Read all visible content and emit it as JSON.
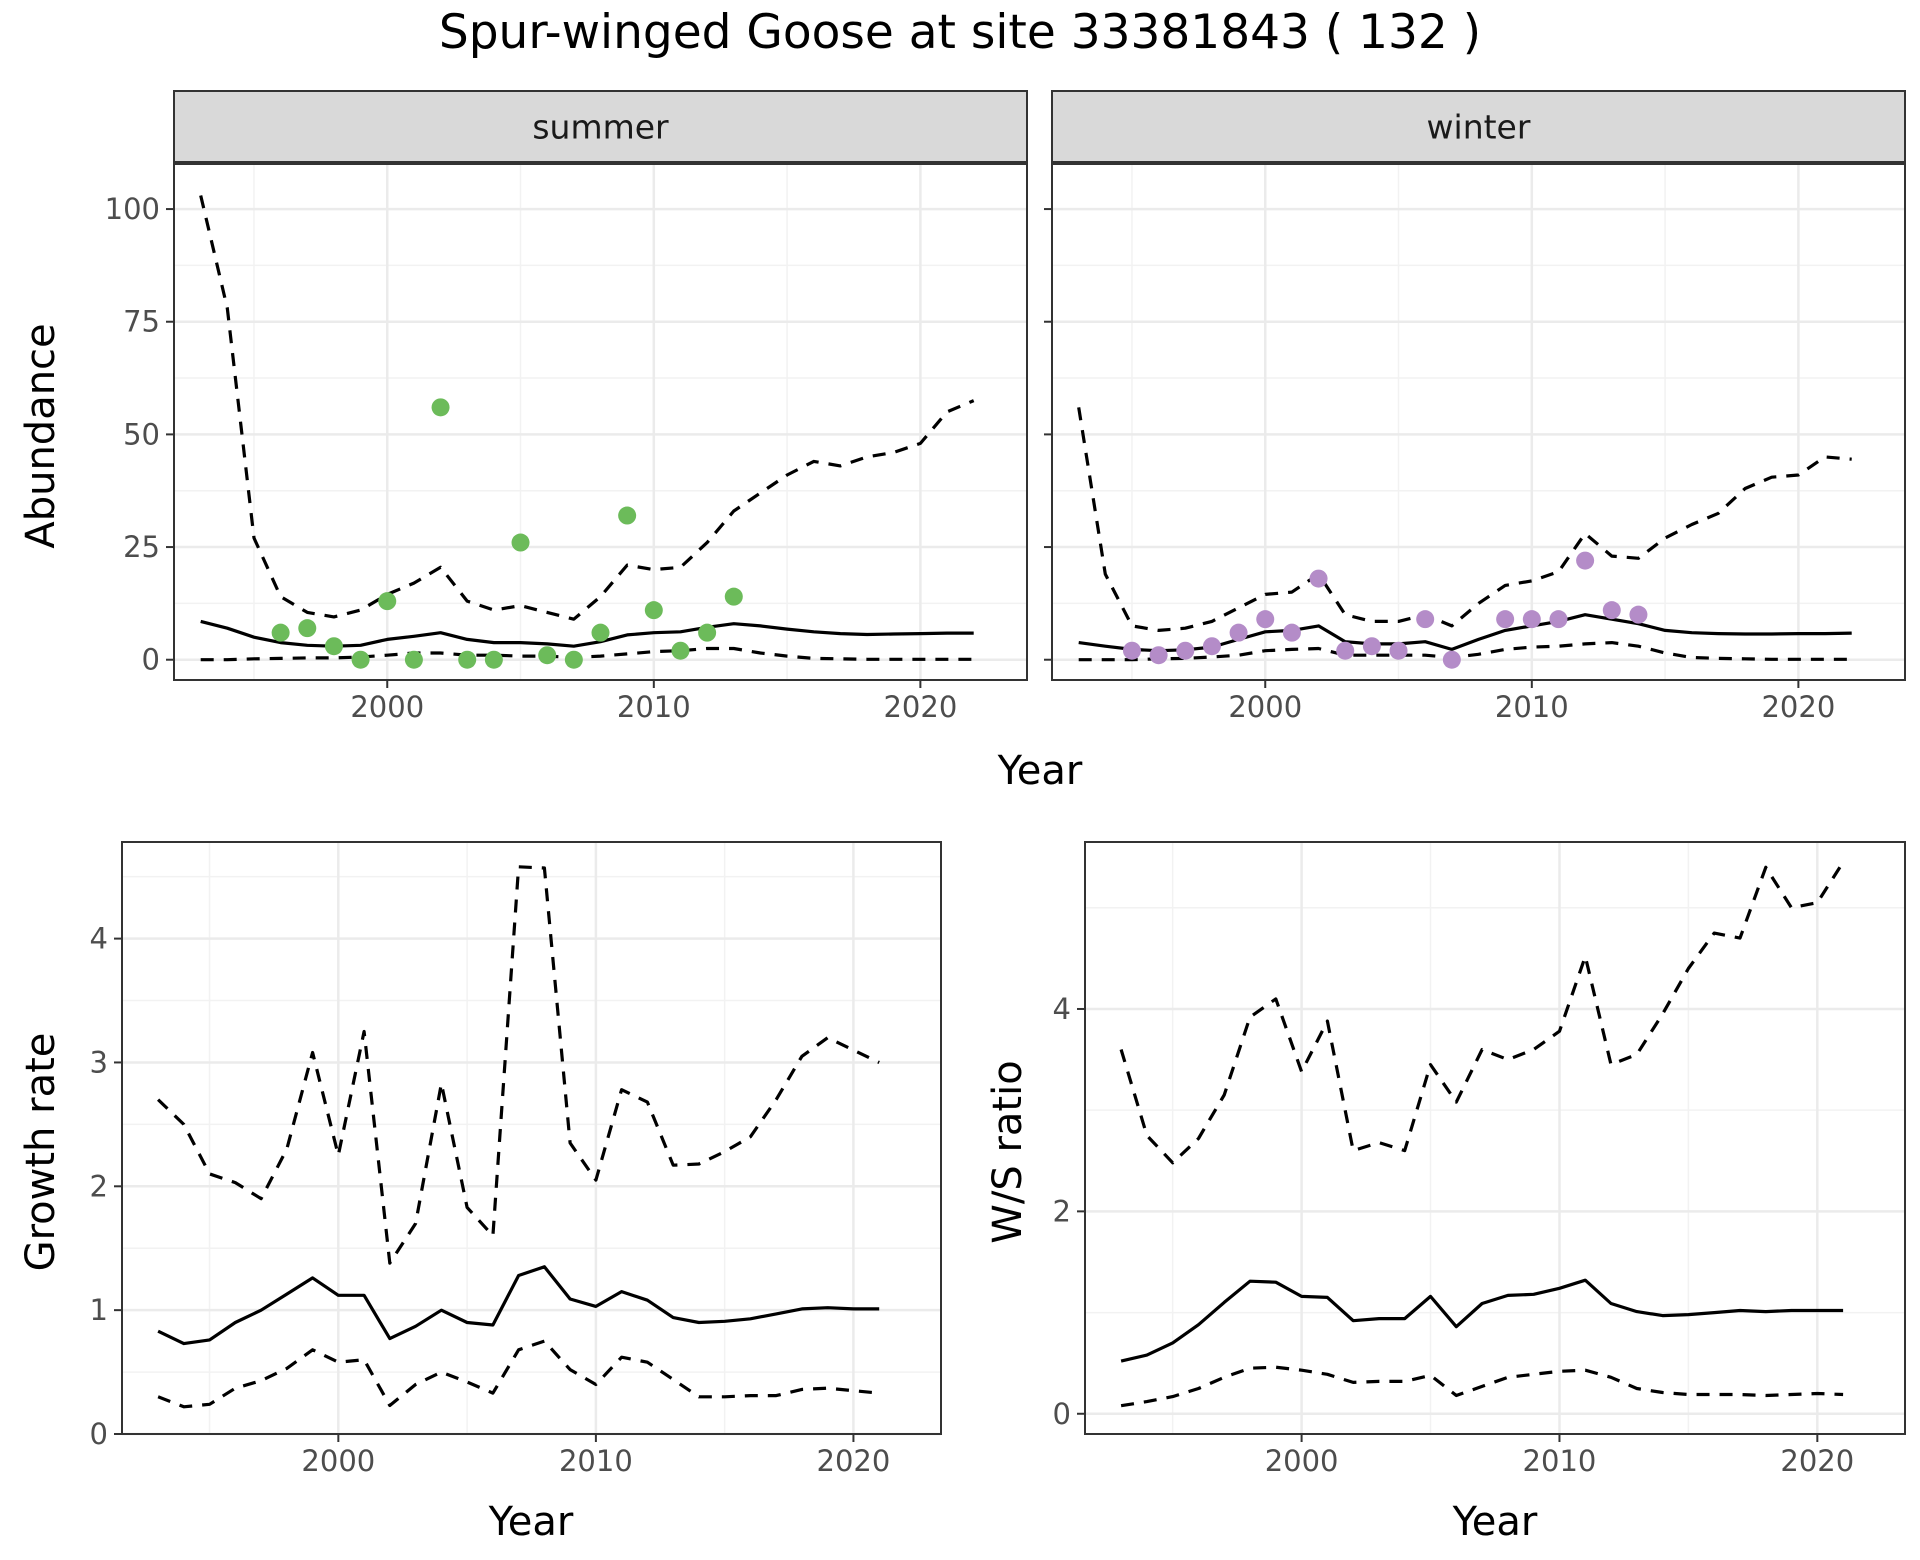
{
  "chart_data": [
    {
      "type": "line",
      "title": "Spur-winged Goose at site 33381843 ( 132 )",
      "facet": "summer",
      "xlabel": "Year",
      "ylabel": "Abundance",
      "xlim": [
        1992,
        2024
      ],
      "ylim": [
        -4.5,
        110
      ],
      "xticks": [
        "2000",
        "2010",
        "2020"
      ],
      "yticks": [
        "0",
        "25",
        "50",
        "75",
        "100"
      ],
      "grid": true,
      "series": [
        {
          "role": "estimate",
          "style": "solid",
          "x": [
            1993,
            1994,
            1995,
            1996,
            1997,
            1998,
            1999,
            2000,
            2001,
            2002,
            2003,
            2004,
            2005,
            2006,
            2007,
            2008,
            2009,
            2010,
            2011,
            2012,
            2013,
            2014,
            2015,
            2016,
            2017,
            2018,
            2019,
            2020,
            2021,
            2022
          ],
          "y": [
            8.5,
            7,
            5,
            3.8,
            3.2,
            3,
            3.2,
            4.5,
            5.2,
            6,
            4.5,
            3.8,
            3.8,
            3.5,
            3,
            4,
            5.5,
            6,
            6.2,
            7.2,
            8,
            7.5,
            6.8,
            6.2,
            5.8,
            5.6,
            5.7,
            5.8,
            5.9,
            5.9
          ]
        },
        {
          "role": "upper",
          "style": "dashed",
          "x": [
            1993,
            1994,
            1995,
            1996,
            1997,
            1998,
            1999,
            2000,
            2001,
            2002,
            2003,
            2004,
            2005,
            2006,
            2007,
            2008,
            2009,
            2010,
            2011,
            2012,
            2013,
            2014,
            2015,
            2016,
            2017,
            2018,
            2019,
            2020,
            2021,
            2022
          ],
          "y": [
            103,
            78,
            27,
            14,
            10.5,
            9.5,
            11,
            14.5,
            17,
            20.5,
            13,
            11,
            12,
            10.5,
            9,
            14,
            21,
            20,
            20.5,
            26,
            33,
            37,
            41,
            44,
            43,
            45,
            46,
            48,
            55,
            57.5
          ]
        },
        {
          "role": "lower",
          "style": "dashed",
          "x": [
            1993,
            1994,
            1995,
            1996,
            1997,
            1998,
            1999,
            2000,
            2001,
            2002,
            2003,
            2004,
            2005,
            2006,
            2007,
            2008,
            2009,
            2010,
            2011,
            2012,
            2013,
            2014,
            2015,
            2016,
            2017,
            2018,
            2019,
            2020,
            2021,
            2022
          ],
          "y": [
            0,
            0,
            0.2,
            0.3,
            0.4,
            0.4,
            0.6,
            1,
            1.5,
            1.5,
            1,
            1,
            0.8,
            0.8,
            0.5,
            0.8,
            1.3,
            1.8,
            2,
            2.5,
            2.5,
            1.5,
            0.8,
            0.3,
            0.2,
            0.1,
            0.1,
            0.1,
            0.1,
            0.1
          ]
        }
      ],
      "points": {
        "color": "#6cbb5a",
        "x": [
          1996,
          1997,
          1998,
          1999,
          2000,
          2001,
          2002,
          2003,
          2004,
          2005,
          2006,
          2007,
          2008,
          2009,
          2010,
          2011,
          2012,
          2013
        ],
        "y": [
          6,
          7,
          3,
          0,
          13,
          0,
          56,
          0,
          0,
          26,
          1,
          0,
          6,
          32,
          11,
          2,
          6,
          14
        ]
      }
    },
    {
      "type": "line",
      "facet": "winter",
      "xlim": [
        1992,
        2024
      ],
      "ylim": [
        -4.5,
        110
      ],
      "xticks": [
        "2000",
        "2010",
        "2020"
      ],
      "grid": true,
      "series": [
        {
          "role": "estimate",
          "style": "solid",
          "x": [
            1993,
            1994,
            1995,
            1996,
            1997,
            1998,
            1999,
            2000,
            2001,
            2002,
            2003,
            2004,
            2005,
            2006,
            2007,
            2008,
            2009,
            2010,
            2011,
            2012,
            2013,
            2014,
            2015,
            2016,
            2017,
            2018,
            2019,
            2020,
            2021,
            2022
          ],
          "y": [
            3.8,
            3,
            2.3,
            2,
            2.2,
            2.8,
            4.5,
            6.2,
            6.5,
            7.5,
            4,
            3.5,
            3.5,
            4,
            2.3,
            4.5,
            6.5,
            7.5,
            8.5,
            10,
            9,
            8,
            6.5,
            6,
            5.8,
            5.7,
            5.7,
            5.8,
            5.8,
            5.9
          ]
        },
        {
          "role": "upper",
          "style": "dashed",
          "x": [
            1993,
            1994,
            1995,
            1996,
            1997,
            1998,
            1999,
            2000,
            2001,
            2002,
            2003,
            2004,
            2005,
            2006,
            2007,
            2008,
            2009,
            2010,
            2011,
            2012,
            2013,
            2014,
            2015,
            2016,
            2017,
            2018,
            2019,
            2020,
            2021,
            2022
          ],
          "y": [
            56,
            19,
            7.5,
            6.5,
            7,
            8.5,
            11.5,
            14.5,
            15,
            19,
            10,
            8.5,
            8.5,
            10,
            7.5,
            12.5,
            16.5,
            17.5,
            19.5,
            28,
            23,
            22.5,
            27,
            30,
            32.5,
            38,
            40.5,
            41,
            45,
            44.5
          ]
        },
        {
          "role": "lower",
          "style": "dashed",
          "x": [
            1993,
            1994,
            1995,
            1996,
            1997,
            1998,
            1999,
            2000,
            2001,
            2002,
            2003,
            2004,
            2005,
            2006,
            2007,
            2008,
            2009,
            2010,
            2011,
            2012,
            2013,
            2014,
            2015,
            2016,
            2017,
            2018,
            2019,
            2020,
            2021,
            2022
          ],
          "y": [
            0,
            0,
            0,
            0.2,
            0.3,
            0.6,
            1,
            2,
            2.3,
            2.5,
            1,
            1,
            1,
            1,
            0.5,
            1.2,
            2.3,
            2.8,
            3,
            3.5,
            3.8,
            3,
            1.5,
            0.5,
            0.3,
            0.2,
            0.1,
            0.1,
            0.1,
            0.1
          ]
        }
      ],
      "points": {
        "color": "#b48cc8",
        "x": [
          1995,
          1996,
          1997,
          1998,
          1999,
          2000,
          2001,
          2002,
          2003,
          2004,
          2005,
          2006,
          2007,
          2009,
          2010,
          2011,
          2012,
          2013,
          2014
        ],
        "y": [
          2,
          1,
          2,
          3,
          6,
          9,
          6,
          18,
          2,
          3,
          2,
          9,
          0,
          9,
          9,
          9,
          22,
          11,
          10
        ]
      }
    },
    {
      "type": "line",
      "xlabel": "Year",
      "ylabel": "Growth rate",
      "xlim": [
        1991.6,
        2023.4
      ],
      "ylim": [
        0,
        4.78
      ],
      "xticks": [
        "2000",
        "2010",
        "2020"
      ],
      "yticks": [
        "0",
        "1",
        "2",
        "3",
        "4"
      ],
      "grid": true,
      "series": [
        {
          "role": "estimate",
          "style": "solid",
          "x": [
            1993,
            1994,
            1995,
            1996,
            1997,
            1998,
            1999,
            2000,
            2001,
            2002,
            2003,
            2004,
            2005,
            2006,
            2007,
            2008,
            2009,
            2010,
            2011,
            2012,
            2013,
            2014,
            2015,
            2016,
            2017,
            2018,
            2019,
            2020,
            2021
          ],
          "y": [
            0.83,
            0.73,
            0.76,
            0.9,
            1,
            1.13,
            1.26,
            1.12,
            1.12,
            0.77,
            0.87,
            1,
            0.9,
            0.88,
            1.28,
            1.35,
            1.09,
            1.03,
            1.15,
            1.08,
            0.94,
            0.9,
            0.91,
            0.93,
            0.97,
            1.01,
            1.02,
            1.01,
            1.01
          ]
        },
        {
          "role": "upper",
          "style": "dashed",
          "x": [
            1993,
            1994,
            1995,
            1996,
            1997,
            1998,
            1999,
            2000,
            2001,
            2002,
            2003,
            2004,
            2005,
            2006,
            2007,
            2008,
            2009,
            2010,
            2011,
            2012,
            2013,
            2014,
            2015,
            2016,
            2017,
            2018,
            2019,
            2020,
            2021
          ],
          "y": [
            2.7,
            2.5,
            2.1,
            2.03,
            1.9,
            2.3,
            3.08,
            2.25,
            3.25,
            1.38,
            1.7,
            2.83,
            1.83,
            1.6,
            4.58,
            4.57,
            2.35,
            2.05,
            2.78,
            2.68,
            2.17,
            2.18,
            2.28,
            2.4,
            2.7,
            3.05,
            3.2,
            3.1,
            3
          ]
        },
        {
          "role": "lower",
          "style": "dashed",
          "x": [
            1993,
            1994,
            1995,
            1996,
            1997,
            1998,
            1999,
            2000,
            2001,
            2002,
            2003,
            2004,
            2005,
            2006,
            2007,
            2008,
            2009,
            2010,
            2011,
            2012,
            2013,
            2014,
            2015,
            2016,
            2017,
            2018,
            2019,
            2020,
            2021
          ],
          "y": [
            0.3,
            0.22,
            0.24,
            0.37,
            0.43,
            0.53,
            0.68,
            0.58,
            0.6,
            0.23,
            0.4,
            0.5,
            0.42,
            0.33,
            0.68,
            0.75,
            0.52,
            0.4,
            0.62,
            0.58,
            0.44,
            0.3,
            0.3,
            0.31,
            0.31,
            0.36,
            0.37,
            0.35,
            0.33
          ]
        }
      ]
    },
    {
      "type": "line",
      "xlabel": "Year",
      "ylabel": "W/S ratio",
      "xlim": [
        1991.6,
        2023.4
      ],
      "ylim": [
        -0.2,
        5.65
      ],
      "xticks": [
        "2000",
        "2010",
        "2020"
      ],
      "yticks": [
        "0",
        "2",
        "4"
      ],
      "grid": true,
      "series": [
        {
          "role": "estimate",
          "style": "solid",
          "x": [
            1993,
            1994,
            1995,
            1996,
            1997,
            1998,
            1999,
            2000,
            2001,
            2002,
            2003,
            2004,
            2005,
            2006,
            2007,
            2008,
            2009,
            2010,
            2011,
            2012,
            2013,
            2014,
            2015,
            2016,
            2017,
            2018,
            2019,
            2020,
            2021
          ],
          "y": [
            0.52,
            0.58,
            0.7,
            0.88,
            1.1,
            1.31,
            1.3,
            1.16,
            1.15,
            0.92,
            0.94,
            0.94,
            1.16,
            0.86,
            1.09,
            1.17,
            1.18,
            1.24,
            1.32,
            1.09,
            1.01,
            0.97,
            0.98,
            1,
            1.02,
            1.01,
            1.02,
            1.02,
            1.02
          ]
        },
        {
          "role": "upper",
          "style": "dashed",
          "x": [
            1993,
            1994,
            1995,
            1996,
            1997,
            1998,
            1999,
            2000,
            2001,
            2002,
            2003,
            2004,
            2005,
            2006,
            2007,
            2008,
            2009,
            2010,
            2011,
            2012,
            2013,
            2014,
            2015,
            2016,
            2017,
            2018,
            2019,
            2020,
            2021
          ],
          "y": [
            3.6,
            2.75,
            2.48,
            2.72,
            3.15,
            3.92,
            4.1,
            3.38,
            3.88,
            2.6,
            2.68,
            2.6,
            3.45,
            3.08,
            3.6,
            3.5,
            3.6,
            3.78,
            4.52,
            3.45,
            3.55,
            3.95,
            4.4,
            4.75,
            4.7,
            5.4,
            5,
            5.05,
            5.45
          ]
        },
        {
          "role": "lower",
          "style": "dashed",
          "x": [
            1993,
            1994,
            1995,
            1996,
            1997,
            1998,
            1999,
            2000,
            2001,
            2002,
            2003,
            2004,
            2005,
            2006,
            2007,
            2008,
            2009,
            2010,
            2011,
            2012,
            2013,
            2014,
            2015,
            2016,
            2017,
            2018,
            2019,
            2020,
            2021
          ],
          "y": [
            0.08,
            0.12,
            0.17,
            0.25,
            0.36,
            0.45,
            0.46,
            0.43,
            0.39,
            0.31,
            0.32,
            0.32,
            0.38,
            0.18,
            0.27,
            0.36,
            0.39,
            0.42,
            0.43,
            0.36,
            0.25,
            0.21,
            0.19,
            0.19,
            0.19,
            0.18,
            0.19,
            0.2,
            0.19
          ]
        }
      ]
    }
  ]
}
